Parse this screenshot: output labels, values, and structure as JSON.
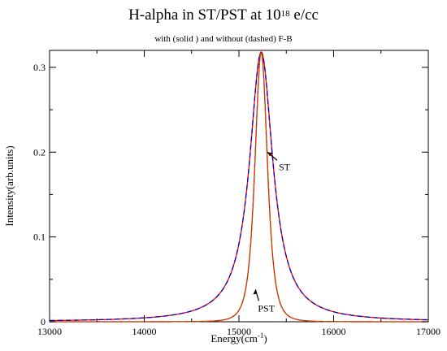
{
  "title": {
    "main_prefix": "H-alpha in  ST/PST at 10",
    "main_exponent": "18",
    "main_suffix": "    e/cc",
    "subtitle": "with (solid ) and without (dashed) F-B"
  },
  "chart_data": {
    "type": "line",
    "xlabel": "Energy(cm",
    "xlabel_sup": "-1",
    "xlabel_end": ")",
    "ylabel": "Intensity(arb.units)",
    "xlim": [
      13000,
      17000
    ],
    "ylim": [
      0,
      0.32
    ],
    "x_ticks": [
      13000,
      14000,
      15000,
      16000,
      17000
    ],
    "x_tick_labels": [
      "13000",
      "14000",
      "15000",
      "16000",
      "17000"
    ],
    "y_ticks": [
      0,
      0.1,
      0.2,
      0.3
    ],
    "y_tick_labels": [
      "0",
      "0.1",
      "0.2",
      "0.3"
    ],
    "grid": false,
    "series": [
      {
        "name": "ST",
        "style": "solid",
        "color": "#ff0000",
        "peak_x": 15235,
        "peak_y": 0.318,
        "width": 150,
        "profile": "lorentzian"
      },
      {
        "name": "ST",
        "style": "dashed",
        "color": "#0000cc",
        "peak_x": 15235,
        "peak_y": 0.318,
        "width": 150,
        "profile": "lorentzian"
      },
      {
        "name": "PST",
        "style": "solid",
        "color": "#ff0000",
        "peak_x": 15235,
        "peak_y": 0.318,
        "width": 120,
        "profile": "lorentzian^2"
      },
      {
        "name": "PST",
        "style": "dashed",
        "color": "#996600",
        "peak_x": 15235,
        "peak_y": 0.318,
        "width": 120,
        "profile": "lorentzian^2"
      }
    ],
    "annotations": [
      {
        "text": "ST",
        "arrow_to_x": 15300,
        "arrow_to_y": 0.2
      },
      {
        "text": "PST",
        "arrow_to_x": 15175,
        "arrow_to_y": 0.038
      }
    ]
  }
}
